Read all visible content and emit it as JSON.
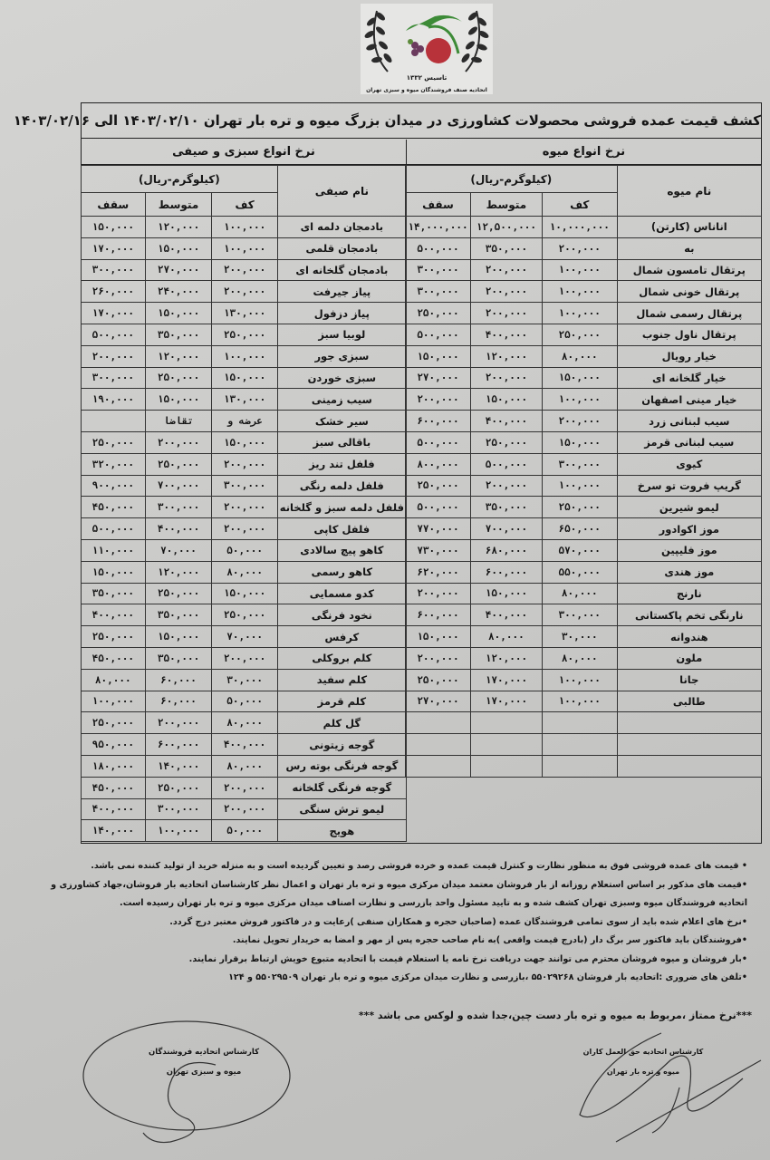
{
  "logo": {
    "org": "اتحادیه صنف فروشندگان میوه و سبزی تهران",
    "est": "تاسیس ۱۳۳۲",
    "colors": {
      "leaf": "#3d8b37",
      "wreath": "#2b2b2b",
      "pomegranate": "#b8323a",
      "grape": "#6b3b5e"
    }
  },
  "title": "کشف قیمت عمده فروشی محصولات کشاورزی در میدان بزرگ میوه و تره بار تهران ۱۴۰۳/۰۲/۱۰ الی ۱۴۰۳/۰۲/۱۶",
  "fruit": {
    "section": "نرخ انواع میوه",
    "unit": "(کیلوگرم-ریال)",
    "name_header": "نام میوه",
    "cols": [
      "کف",
      "متوسط",
      "سقف"
    ],
    "rows": [
      [
        "اناناس (کارتن)",
        "۱۰,۰۰۰,۰۰۰",
        "۱۲,۵۰۰,۰۰۰",
        "۱۴,۰۰۰,۰۰۰"
      ],
      [
        "به",
        "۲۰۰,۰۰۰",
        "۳۵۰,۰۰۰",
        "۵۰۰,۰۰۰"
      ],
      [
        "پرتقال تامسون شمال",
        "۱۰۰,۰۰۰",
        "۲۰۰,۰۰۰",
        "۳۰۰,۰۰۰"
      ],
      [
        "پرتقال خونی شمال",
        "۱۰۰,۰۰۰",
        "۲۰۰,۰۰۰",
        "۳۰۰,۰۰۰"
      ],
      [
        "پرتقال رسمی شمال",
        "۱۰۰,۰۰۰",
        "۲۰۰,۰۰۰",
        "۲۵۰,۰۰۰"
      ],
      [
        "پرتقال ناول جنوب",
        "۲۵۰,۰۰۰",
        "۴۰۰,۰۰۰",
        "۵۰۰,۰۰۰"
      ],
      [
        "خیار رویال",
        "۸۰,۰۰۰",
        "۱۲۰,۰۰۰",
        "۱۵۰,۰۰۰"
      ],
      [
        "خیار گلخانه ای",
        "۱۵۰,۰۰۰",
        "۲۰۰,۰۰۰",
        "۲۷۰,۰۰۰"
      ],
      [
        "خیار مینی اصفهان",
        "۱۰۰,۰۰۰",
        "۱۵۰,۰۰۰",
        "۲۰۰,۰۰۰"
      ],
      [
        "سیب لبنانی زرد",
        "۲۰۰,۰۰۰",
        "۴۰۰,۰۰۰",
        "۶۰۰,۰۰۰"
      ],
      [
        "سیب لبنانی قرمز",
        "۱۵۰,۰۰۰",
        "۲۵۰,۰۰۰",
        "۵۰۰,۰۰۰"
      ],
      [
        "کیوی",
        "۳۰۰,۰۰۰",
        "۵۰۰,۰۰۰",
        "۸۰۰,۰۰۰"
      ],
      [
        "گریپ فروت تو سرخ",
        "۱۰۰,۰۰۰",
        "۲۰۰,۰۰۰",
        "۲۵۰,۰۰۰"
      ],
      [
        "لیمو شیرین",
        "۲۵۰,۰۰۰",
        "۳۵۰,۰۰۰",
        "۵۰۰,۰۰۰"
      ],
      [
        "موز اکوادور",
        "۶۵۰,۰۰۰",
        "۷۰۰,۰۰۰",
        "۷۷۰,۰۰۰"
      ],
      [
        "موز فلیپین",
        "۵۷۰,۰۰۰",
        "۶۸۰,۰۰۰",
        "۷۳۰,۰۰۰"
      ],
      [
        "موز هندی",
        "۵۵۰,۰۰۰",
        "۶۰۰,۰۰۰",
        "۶۲۰,۰۰۰"
      ],
      [
        "نارنج",
        "۸۰,۰۰۰",
        "۱۵۰,۰۰۰",
        "۲۰۰,۰۰۰"
      ],
      [
        "نارنگی تخم پاکستانی",
        "۳۰۰,۰۰۰",
        "۴۰۰,۰۰۰",
        "۶۰۰,۰۰۰"
      ],
      [
        "هندوانه",
        "۳۰,۰۰۰",
        "۸۰,۰۰۰",
        "۱۵۰,۰۰۰"
      ],
      [
        "ملون",
        "۸۰,۰۰۰",
        "۱۲۰,۰۰۰",
        "۲۰۰,۰۰۰"
      ],
      [
        "جانا",
        "۱۰۰,۰۰۰",
        "۱۷۰,۰۰۰",
        "۲۵۰,۰۰۰"
      ],
      [
        "طالبی",
        "۱۰۰,۰۰۰",
        "۱۷۰,۰۰۰",
        "۲۷۰,۰۰۰"
      ],
      [
        "",
        "",
        "",
        ""
      ],
      [
        "",
        "",
        "",
        ""
      ],
      [
        "",
        "",
        "",
        ""
      ]
    ]
  },
  "veg": {
    "section": "نرخ انواع سبزی و صیفی",
    "unit": "(کیلوگرم-ریال)",
    "name_header": "نام صیفی",
    "cols": [
      "کف",
      "متوسط",
      "سقف"
    ],
    "rows": [
      [
        "بادمجان دلمه ای",
        "۱۰۰,۰۰۰",
        "۱۲۰,۰۰۰",
        "۱۵۰,۰۰۰"
      ],
      [
        "بادمجان قلمی",
        "۱۰۰,۰۰۰",
        "۱۵۰,۰۰۰",
        "۱۷۰,۰۰۰"
      ],
      [
        "بادمجان گلخانه ای",
        "۲۰۰,۰۰۰",
        "۲۷۰,۰۰۰",
        "۳۰۰,۰۰۰"
      ],
      [
        "پیاز جیرفت",
        "۲۰۰,۰۰۰",
        "۲۴۰,۰۰۰",
        "۲۶۰,۰۰۰"
      ],
      [
        "پیاز دزفول",
        "۱۳۰,۰۰۰",
        "۱۵۰,۰۰۰",
        "۱۷۰,۰۰۰"
      ],
      [
        "لوبیا سبز",
        "۲۵۰,۰۰۰",
        "۳۵۰,۰۰۰",
        "۵۰۰,۰۰۰"
      ],
      [
        "سبزی جور",
        "۱۰۰,۰۰۰",
        "۱۲۰,۰۰۰",
        "۲۰۰,۰۰۰"
      ],
      [
        "سبزی خوردن",
        "۱۵۰,۰۰۰",
        "۲۵۰,۰۰۰",
        "۳۰۰,۰۰۰"
      ],
      [
        "سیب زمینی",
        "۱۳۰,۰۰۰",
        "۱۵۰,۰۰۰",
        "۱۹۰,۰۰۰"
      ],
      [
        "سیر خشک",
        "عرضه و",
        "تقاضا",
        ""
      ],
      [
        "باقالی سبز",
        "۱۵۰,۰۰۰",
        "۲۰۰,۰۰۰",
        "۲۵۰,۰۰۰"
      ],
      [
        "فلفل تند ریز",
        "۲۰۰,۰۰۰",
        "۲۵۰,۰۰۰",
        "۳۲۰,۰۰۰"
      ],
      [
        "فلفل دلمه رنگی",
        "۳۰۰,۰۰۰",
        "۷۰۰,۰۰۰",
        "۹۰۰,۰۰۰"
      ],
      [
        "فلفل دلمه سبز و گلخانه",
        "۲۰۰,۰۰۰",
        "۳۰۰,۰۰۰",
        "۴۵۰,۰۰۰"
      ],
      [
        "فلفل کاپی",
        "۲۰۰,۰۰۰",
        "۴۰۰,۰۰۰",
        "۵۰۰,۰۰۰"
      ],
      [
        "کاهو پیچ سالادی",
        "۵۰,۰۰۰",
        "۷۰,۰۰۰",
        "۱۱۰,۰۰۰"
      ],
      [
        "کاهو رسمی",
        "۸۰,۰۰۰",
        "۱۲۰,۰۰۰",
        "۱۵۰,۰۰۰"
      ],
      [
        "کدو مسمایی",
        "۱۵۰,۰۰۰",
        "۲۵۰,۰۰۰",
        "۳۵۰,۰۰۰"
      ],
      [
        "نخود فرنگی",
        "۲۵۰,۰۰۰",
        "۳۵۰,۰۰۰",
        "۴۰۰,۰۰۰"
      ],
      [
        "کرفس",
        "۷۰,۰۰۰",
        "۱۵۰,۰۰۰",
        "۲۵۰,۰۰۰"
      ],
      [
        "کلم بروکلی",
        "۲۰۰,۰۰۰",
        "۳۵۰,۰۰۰",
        "۴۵۰,۰۰۰"
      ],
      [
        "کلم سفید",
        "۳۰,۰۰۰",
        "۶۰,۰۰۰",
        "۸۰,۰۰۰"
      ],
      [
        "کلم قرمز",
        "۵۰,۰۰۰",
        "۶۰,۰۰۰",
        "۱۰۰,۰۰۰"
      ],
      [
        "گل کلم",
        "۸۰,۰۰۰",
        "۲۰۰,۰۰۰",
        "۲۵۰,۰۰۰"
      ],
      [
        "گوجه زیتونی",
        "۴۰۰,۰۰۰",
        "۶۰۰,۰۰۰",
        "۹۵۰,۰۰۰"
      ],
      [
        "گوجه فرنگی بوته رس",
        "۸۰,۰۰۰",
        "۱۴۰,۰۰۰",
        "۱۸۰,۰۰۰"
      ],
      [
        "گوجه فرنگی گلخانه",
        "۲۰۰,۰۰۰",
        "۲۵۰,۰۰۰",
        "۴۵۰,۰۰۰"
      ],
      [
        "لیمو ترش سنگی",
        "۲۰۰,۰۰۰",
        "۳۰۰,۰۰۰",
        "۴۰۰,۰۰۰"
      ],
      [
        "هویج",
        "۵۰,۰۰۰",
        "۱۰۰,۰۰۰",
        "۱۴۰,۰۰۰"
      ]
    ]
  },
  "notes": [
    "• قیمت های عمده فروشی فوق به منظور نظارت و کنترل قیمت عمده و خرده فروشی رصد و تعیین گردیده است و به منزله خرید از تولید کننده نمی باشد.",
    "•قیمت های مذکور بر اساس استعلام روزانه از بار فروشان معتمد میدان مرکزی میوه و تره بار تهران و اعمال نظر کارشناسان اتحادیه بار فروشان،جهاد کشاورزی و",
    "اتحادیه فروشندگان میوه وسبزی تهران کشف شده و به تایید مسئول واحد بازرسی و نظارت اصناف میدان مرکزی میوه و تره بار تهران رسیده است.",
    "•نرخ های اعلام شده باید از سوی تمامی فروشندگان عمده (صاحبان حجره و همکاران صنفی )رعایت و در فاکتور فروش معتبر درج گردد.",
    "•فروشندگان باید فاکتور سر برگ دار (بادرج قیمت واقعی )به نام صاحب حجره پس از مهر و امضا به خریدار تحویل نمایند.",
    "•بار فروشان و میوه فروشان محترم می توانند جهت دریافت نرخ نامه یا استعلام قیمت با اتحادیه متبوع خویش ارتباط برقرار نمایند.",
    "•تلفن های ضروری :اتحادیه بار فروشان ۵۵۰۲۹۲۶۸ ،بازرسی و نظارت میدان مرکزی میوه و تره بار تهران ۵۵۰۲۹۵۰۹ و ۱۲۴"
  ],
  "premium_note": "***نرخ ممتاز ،مربوط به میوه و تره بار دست چین،جدا شده و لوکس می باشد ***",
  "signatures": {
    "left": [
      "کارشناس اتحادیه فروشندگان",
      "میوه و سبزی تهران"
    ],
    "right": [
      "کارشناس اتحادیه حق العمل کاران",
      "میوه و تره بار تهران"
    ]
  }
}
